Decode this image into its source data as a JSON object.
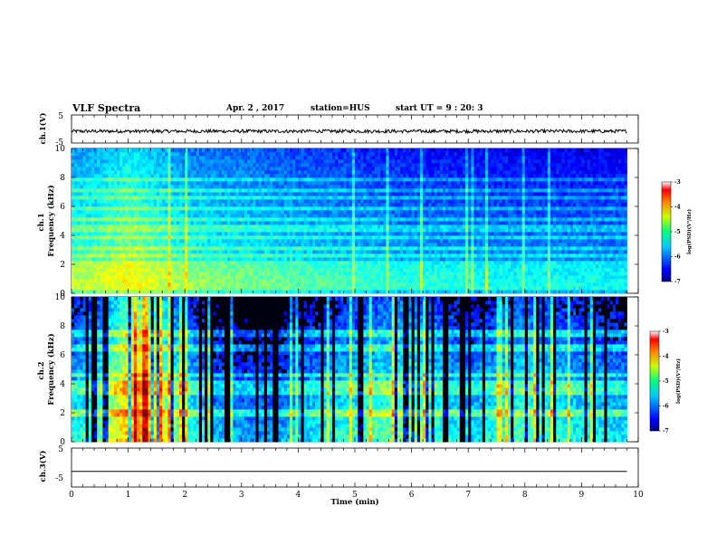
{
  "header": {
    "title": "VLF Spectra",
    "date": "Apr. 2 , 2017",
    "station": "station=HUS",
    "start": "start UT =  9 : 20: 3"
  },
  "chart_data": [
    {
      "type": "line",
      "name": "ch1-waveform",
      "ylabel": "ch.1(V)",
      "ylim": [
        -5,
        5
      ],
      "yticks": [
        "5",
        "-5"
      ],
      "xlim": [
        0,
        10
      ],
      "baseline": -0.8,
      "noise_amplitude": 0.6
    },
    {
      "type": "heatmap",
      "name": "ch1-spectrogram",
      "ylabel": "ch.1\nFrequency (kHz)",
      "ylim": [
        0,
        10
      ],
      "yticks": [
        0,
        2,
        4,
        6,
        8,
        10
      ],
      "xlim": [
        0,
        9.8
      ],
      "colorbar": {
        "label": "log(PSD)(V²/Hz)",
        "ticks": [
          -3,
          -4,
          -5,
          -6,
          -7
        ],
        "range": [
          -7,
          -3
        ]
      },
      "horizontal_bands_khz": [
        0.3,
        0.55,
        0.8,
        1.1,
        1.5,
        2.0,
        2.6,
        3.2,
        3.9,
        4.5,
        5.2,
        5.9,
        6.6,
        7.2,
        7.8
      ],
      "activity_profile": [
        {
          "t": 0.0,
          "level": 0.55
        },
        {
          "t": 0.5,
          "level": 0.6
        },
        {
          "t": 1.0,
          "level": 0.7
        },
        {
          "t": 1.3,
          "level": 0.65
        },
        {
          "t": 2.0,
          "level": 0.5
        },
        {
          "t": 3.0,
          "level": 0.45
        },
        {
          "t": 4.0,
          "level": 0.4
        },
        {
          "t": 5.0,
          "level": 0.35
        },
        {
          "t": 6.0,
          "level": 0.3
        },
        {
          "t": 7.0,
          "level": 0.28
        },
        {
          "t": 8.0,
          "level": 0.26
        },
        {
          "t": 9.8,
          "level": 0.25
        }
      ]
    },
    {
      "type": "heatmap",
      "name": "ch2-spectrogram",
      "ylabel": "ch.2\nFrequency (kHz)",
      "ylim": [
        0,
        10
      ],
      "yticks": [
        0,
        2,
        4,
        6,
        8,
        10
      ],
      "xlim": [
        0,
        9.8
      ],
      "colorbar": {
        "label": "log(PSD)(V²/Hz)",
        "ticks": [
          -3,
          -4,
          -5,
          -6,
          -7
        ],
        "range": [
          -7,
          -3
        ]
      },
      "horizontal_bands_khz": [
        2.0,
        3.5,
        4.0,
        4.7,
        6.5,
        7.5
      ],
      "activity_profile": [
        {
          "t": 0.0,
          "level": 0.45
        },
        {
          "t": 0.5,
          "level": 0.55
        },
        {
          "t": 1.0,
          "level": 0.85
        },
        {
          "t": 1.3,
          "level": 0.9
        },
        {
          "t": 1.8,
          "level": 0.6
        },
        {
          "t": 2.5,
          "level": 0.35
        },
        {
          "t": 3.5,
          "level": 0.3
        },
        {
          "t": 4.5,
          "level": 0.45
        },
        {
          "t": 5.5,
          "level": 0.55
        },
        {
          "t": 6.0,
          "level": 0.6
        },
        {
          "t": 7.0,
          "level": 0.4
        },
        {
          "t": 8.0,
          "level": 0.55
        },
        {
          "t": 9.0,
          "level": 0.45
        },
        {
          "t": 9.8,
          "level": 0.4
        }
      ]
    },
    {
      "type": "line",
      "name": "ch3-waveform",
      "ylabel": "ch.3(V)",
      "ylim": [
        -5,
        5
      ],
      "yticks": [
        "5",
        "-5"
      ],
      "xlim": [
        0,
        10
      ],
      "baseline": -1.0,
      "noise_amplitude": 0.0
    }
  ],
  "xaxis": {
    "label": "Time (min)",
    "range": [
      0,
      10
    ],
    "ticks": [
      0,
      1,
      2,
      3,
      4,
      5,
      6,
      7,
      8,
      9,
      10
    ]
  },
  "colors": {
    "spec_low": "#00007f",
    "spec_mid": "#00ffcc",
    "spec_high": "#ff0000",
    "trace": "#000000"
  }
}
